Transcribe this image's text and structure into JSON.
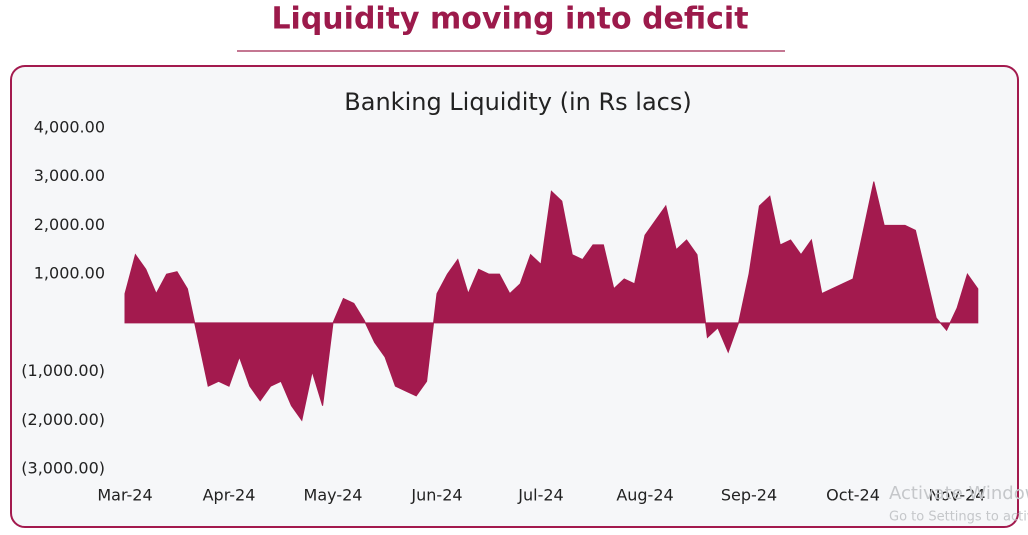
{
  "header": {
    "title": "Liquidity moving into deficit"
  },
  "chart_data": {
    "type": "area",
    "title": "Banking Liquidity (in Rs lacs)",
    "categories": [
      "Mar-24",
      null,
      null,
      null,
      null,
      null,
      null,
      null,
      null,
      null,
      "Apr-24",
      null,
      null,
      null,
      null,
      null,
      null,
      null,
      null,
      null,
      "May-24",
      null,
      null,
      null,
      null,
      null,
      null,
      null,
      null,
      null,
      "Jun-24",
      null,
      null,
      null,
      null,
      null,
      null,
      null,
      null,
      null,
      "Jul-24",
      null,
      null,
      null,
      null,
      null,
      null,
      null,
      null,
      null,
      "Aug-24",
      null,
      null,
      null,
      null,
      null,
      null,
      null,
      null,
      null,
      "Sep-24",
      null,
      null,
      null,
      null,
      null,
      null,
      null,
      null,
      null,
      "Oct-24",
      null,
      null,
      null,
      null,
      null,
      null,
      null,
      null,
      null,
      "Nov-24",
      null,
      null
    ],
    "values": [
      600,
      1400,
      1100,
      600,
      1000,
      1050,
      700,
      -300,
      -1300,
      -1200,
      -1300,
      -700,
      -1300,
      -1600,
      -1300,
      -1200,
      -1700,
      -2000,
      -1000,
      -1700,
      0,
      500,
      400,
      50,
      -400,
      -700,
      -1300,
      -1400,
      -1500,
      -1200,
      600,
      1000,
      1300,
      600,
      1100,
      1000,
      1000,
      600,
      800,
      1400,
      1200,
      2700,
      2500,
      1400,
      1300,
      1600,
      1600,
      700,
      900,
      800,
      1800,
      2100,
      2400,
      1500,
      1700,
      1400,
      -300,
      -100,
      -600,
      0,
      1000,
      2400,
      2600,
      1600,
      1700,
      1400,
      1700,
      600,
      700,
      800,
      900,
      1900,
      2900,
      2000,
      2000,
      2000,
      1900,
      1000,
      100,
      -150,
      300,
      1000,
      700
    ],
    "color": "#a31a4e",
    "ylim": [
      -3000,
      4000
    ],
    "yticks": [
      {
        "value": 4000,
        "label": "4,000.00"
      },
      {
        "value": 3000,
        "label": "3,000.00"
      },
      {
        "value": 2000,
        "label": "2,000.00"
      },
      {
        "value": 1000,
        "label": "1,000.00"
      },
      {
        "value": -1000,
        "label": "(1,000.00)"
      },
      {
        "value": -2000,
        "label": "(2,000.00)"
      },
      {
        "value": -3000,
        "label": "(3,000.00)"
      }
    ]
  },
  "watermark": {
    "title": "Activate Windows",
    "subtitle": "Go to Settings to activate Windows."
  }
}
